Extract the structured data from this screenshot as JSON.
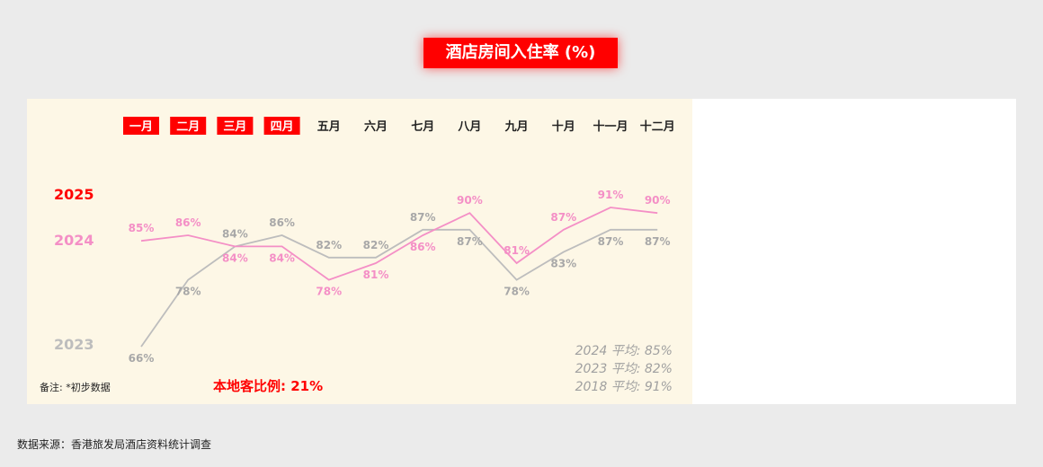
{
  "title": "酒店房间入住率 (%)",
  "source": "数据来源：香港旅发局酒店资料统计调查",
  "note": "备注: *初步数据",
  "local_ratio": "本地客比例: 21%",
  "colors": {
    "accent": "#ff0000",
    "y2024": "#f48fc6",
    "y2023": "#bdbdbd",
    "panel": "#fdf7e6"
  },
  "chart_data": {
    "type": "line",
    "categories": [
      "一月",
      "二月",
      "三月",
      "四月",
      "五月",
      "六月",
      "七月",
      "八月",
      "九月",
      "十月",
      "十一月",
      "十二月"
    ],
    "highlighted_months": [
      "一月",
      "二月",
      "三月",
      "四月"
    ],
    "year_labels": [
      "2025",
      "2024",
      "2023"
    ],
    "series": [
      {
        "name": "2024",
        "values": [
          85,
          86,
          84,
          84,
          78,
          81,
          86,
          90,
          81,
          87,
          91,
          90
        ]
      },
      {
        "name": "2023",
        "values": [
          66,
          78,
          84,
          86,
          82,
          82,
          87,
          87,
          78,
          83,
          87,
          87
        ]
      }
    ],
    "averages": [
      "2024 平均: 85%",
      "2023 平均: 82%",
      "2018 平均: 91%"
    ],
    "ylim": [
      60,
      95
    ],
    "grid": false
  }
}
